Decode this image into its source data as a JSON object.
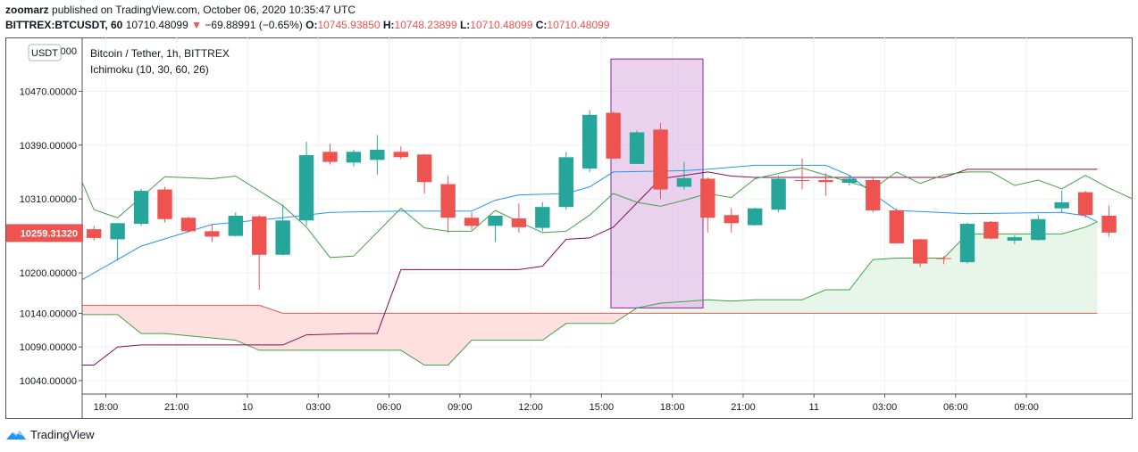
{
  "header": {
    "author": "zoomarz",
    "published_text": "published on TradingView.com, October 06, 2020 10:35:47 UTC",
    "symbol": "BITTREX:BTCUSDT, 60",
    "last": "10710.48099",
    "change": "−69.88991 (−0.65%)",
    "o_label": "O:",
    "o_val": "10745.93850",
    "h_label": "H:",
    "h_val": "10748.23899",
    "l_label": "L:",
    "l_val": "10710.48099",
    "c_label": "C:",
    "c_val": "10710.48099"
  },
  "chart_data": {
    "type": "candlestick",
    "title": "Bitcoin / Tether, 1h, BITTREX",
    "indicator": "Ichimoku (10, 30, 60, 26)",
    "currency_badge": "USDT",
    "price_tag": "10259.31320",
    "ylim": [
      10020,
      10550
    ],
    "y_ticks": [
      10470,
      10390,
      10310,
      10200,
      10140,
      10090,
      10040
    ],
    "y_tick_labels": [
      "10470.00000",
      "10390.00000",
      "10310.00000",
      "10200.00000",
      "10140.00000",
      "10090.00000",
      "10040.00000"
    ],
    "top_tick_partial": "1055.0000",
    "x_ticks": [
      {
        "i": 0.5,
        "label": "18:00"
      },
      {
        "i": 3.5,
        "label": "21:00"
      },
      {
        "i": 6.5,
        "label": "10"
      },
      {
        "i": 9.5,
        "label": "03:00"
      },
      {
        "i": 12.5,
        "label": "06:00"
      },
      {
        "i": 15.5,
        "label": "09:00"
      },
      {
        "i": 18.5,
        "label": "12:00"
      },
      {
        "i": 21.5,
        "label": "15:00"
      },
      {
        "i": 24.5,
        "label": "18:00"
      },
      {
        "i": 27.5,
        "label": "21:00"
      },
      {
        "i": 30.5,
        "label": "11"
      },
      {
        "i": 33.5,
        "label": "03:00"
      },
      {
        "i": 36.5,
        "label": "06:00"
      },
      {
        "i": 39.5,
        "label": "09:00"
      }
    ],
    "candles": [
      {
        "o": 10265,
        "h": 10270,
        "l": 10248,
        "c": 10252
      },
      {
        "o": 10250,
        "h": 10275,
        "l": 10218,
        "c": 10274
      },
      {
        "o": 10273,
        "h": 10325,
        "l": 10270,
        "c": 10322
      },
      {
        "o": 10324,
        "h": 10328,
        "l": 10275,
        "c": 10280
      },
      {
        "o": 10282,
        "h": 10284,
        "l": 10260,
        "c": 10262
      },
      {
        "o": 10262,
        "h": 10272,
        "l": 10246,
        "c": 10254
      },
      {
        "o": 10255,
        "h": 10290,
        "l": 10254,
        "c": 10285
      },
      {
        "o": 10284,
        "h": 10286,
        "l": 10175,
        "c": 10227
      },
      {
        "o": 10227,
        "h": 10302,
        "l": 10226,
        "c": 10278
      },
      {
        "o": 10278,
        "h": 10395,
        "l": 10270,
        "c": 10375
      },
      {
        "o": 10380,
        "h": 10392,
        "l": 10361,
        "c": 10365
      },
      {
        "o": 10364,
        "h": 10383,
        "l": 10358,
        "c": 10380
      },
      {
        "o": 10368,
        "h": 10405,
        "l": 10346,
        "c": 10383
      },
      {
        "o": 10380,
        "h": 10388,
        "l": 10369,
        "c": 10372
      },
      {
        "o": 10376,
        "h": 10377,
        "l": 10318,
        "c": 10335
      },
      {
        "o": 10332,
        "h": 10344,
        "l": 10260,
        "c": 10282
      },
      {
        "o": 10282,
        "h": 10290,
        "l": 10264,
        "c": 10270
      },
      {
        "o": 10270,
        "h": 10285,
        "l": 10246,
        "c": 10285
      },
      {
        "o": 10281,
        "h": 10303,
        "l": 10260,
        "c": 10268
      },
      {
        "o": 10267,
        "h": 10305,
        "l": 10262,
        "c": 10298
      },
      {
        "o": 10298,
        "h": 10380,
        "l": 10294,
        "c": 10372
      },
      {
        "o": 10355,
        "h": 10442,
        "l": 10350,
        "c": 10435
      },
      {
        "o": 10438,
        "h": 10440,
        "l": 10370,
        "c": 10370
      },
      {
        "o": 10362,
        "h": 10412,
        "l": 10362,
        "c": 10409
      },
      {
        "o": 10413,
        "h": 10423,
        "l": 10310,
        "c": 10324
      },
      {
        "o": 10328,
        "h": 10365,
        "l": 10324,
        "c": 10341
      },
      {
        "o": 10340,
        "h": 10342,
        "l": 10260,
        "c": 10282
      },
      {
        "o": 10286,
        "h": 10296,
        "l": 10260,
        "c": 10274
      },
      {
        "o": 10271,
        "h": 10297,
        "l": 10270,
        "c": 10296
      },
      {
        "o": 10294,
        "h": 10345,
        "l": 10290,
        "c": 10340
      },
      {
        "o": 10338,
        "h": 10370,
        "l": 10324,
        "c": 10337
      },
      {
        "o": 10338,
        "h": 10348,
        "l": 10315,
        "c": 10335
      },
      {
        "o": 10334,
        "h": 10344,
        "l": 10330,
        "c": 10340
      },
      {
        "o": 10338,
        "h": 10342,
        "l": 10290,
        "c": 10293
      },
      {
        "o": 10293,
        "h": 10296,
        "l": 10244,
        "c": 10244
      },
      {
        "o": 10250,
        "h": 10251,
        "l": 10209,
        "c": 10214
      },
      {
        "o": 10222,
        "h": 10225,
        "l": 10213,
        "c": 10221
      },
      {
        "o": 10216,
        "h": 10275,
        "l": 10214,
        "c": 10273
      },
      {
        "o": 10276,
        "h": 10277,
        "l": 10250,
        "c": 10251
      },
      {
        "o": 10248,
        "h": 10256,
        "l": 10243,
        "c": 10253
      },
      {
        "o": 10249,
        "h": 10286,
        "l": 10248,
        "c": 10280
      },
      {
        "o": 10296,
        "h": 10322,
        "l": 10290,
        "c": 10305
      },
      {
        "o": 10320,
        "h": 10322,
        "l": 10282,
        "c": 10286
      },
      {
        "o": 10285,
        "h": 10300,
        "l": 10254,
        "c": 10260
      }
    ],
    "lines": {
      "conversion": {
        "color": "#2196f3",
        "points": [
          [
            -0.5,
            10190
          ],
          [
            2,
            10240
          ],
          [
            5,
            10272
          ],
          [
            8,
            10282
          ],
          [
            10,
            10290
          ],
          [
            13,
            10292
          ],
          [
            16,
            10292
          ],
          [
            17,
            10308
          ],
          [
            18,
            10316
          ],
          [
            20,
            10318
          ],
          [
            21,
            10328
          ],
          [
            22,
            10350
          ],
          [
            25,
            10352
          ],
          [
            26,
            10354
          ],
          [
            28,
            10360
          ],
          [
            31,
            10360
          ],
          [
            32,
            10345
          ],
          [
            33,
            10318
          ],
          [
            34,
            10293
          ],
          [
            37,
            10288
          ],
          [
            41,
            10290
          ],
          [
            42,
            10285
          ],
          [
            42.5,
            10276
          ]
        ]
      },
      "base": {
        "color": "#880e4f",
        "points": [
          [
            -0.5,
            10063
          ],
          [
            0,
            10063
          ],
          [
            1,
            10090
          ],
          [
            2,
            10093
          ],
          [
            8,
            10093
          ],
          [
            9,
            10108
          ],
          [
            11,
            10110
          ],
          [
            12,
            10110
          ],
          [
            13,
            10205
          ],
          [
            18,
            10205
          ],
          [
            19,
            10210
          ],
          [
            20,
            10250
          ],
          [
            21,
            10252
          ],
          [
            22,
            10268
          ],
          [
            24,
            10340
          ],
          [
            25,
            10345
          ],
          [
            26,
            10350
          ],
          [
            27,
            10344
          ],
          [
            28,
            10342
          ],
          [
            31,
            10342
          ],
          [
            34,
            10342
          ],
          [
            35,
            10342
          ],
          [
            36,
            10342
          ],
          [
            37,
            10354
          ],
          [
            42.5,
            10354
          ]
        ]
      },
      "lagging": {
        "color": "#43a047",
        "points": [
          [
            -0.5,
            10335
          ],
          [
            0,
            10294
          ],
          [
            1,
            10282
          ],
          [
            3,
            10343
          ],
          [
            5,
            10340
          ],
          [
            6,
            10344
          ],
          [
            8,
            10300
          ],
          [
            9,
            10268
          ],
          [
            10,
            10223
          ],
          [
            11,
            10225
          ],
          [
            13,
            10296
          ],
          [
            14,
            10267
          ],
          [
            15,
            10262
          ],
          [
            16,
            10262
          ],
          [
            17,
            10293
          ],
          [
            18,
            10276
          ],
          [
            19,
            10260
          ],
          [
            20,
            10262
          ],
          [
            21,
            10286
          ],
          [
            22,
            10318
          ],
          [
            23,
            10305
          ],
          [
            24,
            10299
          ],
          [
            25,
            10308
          ],
          [
            26,
            10318
          ],
          [
            27,
            10312
          ],
          [
            28,
            10340
          ],
          [
            30,
            10356
          ],
          [
            32,
            10335
          ],
          [
            33,
            10325
          ],
          [
            34,
            10350
          ],
          [
            35,
            10333
          ],
          [
            36,
            10346
          ],
          [
            37,
            10350
          ],
          [
            38,
            10350
          ],
          [
            39,
            10330
          ],
          [
            40,
            10338
          ],
          [
            41,
            10325
          ],
          [
            42,
            10345
          ],
          [
            43,
            10326
          ],
          [
            44,
            10310
          ]
        ]
      },
      "span_a": {
        "color": "#43a047",
        "points": [
          [
            -0.5,
            10138
          ],
          [
            1,
            10138
          ],
          [
            2,
            10110
          ],
          [
            3,
            10110
          ],
          [
            6,
            10100
          ],
          [
            7,
            10085
          ],
          [
            12,
            10085
          ],
          [
            13,
            10085
          ],
          [
            14,
            10063
          ],
          [
            15,
            10063
          ],
          [
            16,
            10100
          ],
          [
            19,
            10100
          ],
          [
            20,
            10125
          ],
          [
            22,
            10125
          ],
          [
            23,
            10148
          ],
          [
            24,
            10155
          ],
          [
            26,
            10160
          ],
          [
            27,
            10158
          ],
          [
            28,
            10160
          ],
          [
            30,
            10160
          ],
          [
            31,
            10175
          ],
          [
            32,
            10175
          ],
          [
            33,
            10220
          ],
          [
            34,
            10222
          ],
          [
            35,
            10222
          ],
          [
            36,
            10222
          ],
          [
            37,
            10258
          ],
          [
            41,
            10258
          ],
          [
            42,
            10268
          ],
          [
            42.5,
            10276
          ]
        ]
      },
      "span_b": {
        "color": "#ef5350",
        "points": [
          [
            -0.5,
            10152
          ],
          [
            7,
            10152
          ],
          [
            8,
            10140
          ],
          [
            42.5,
            10140
          ]
        ]
      }
    },
    "highlight": {
      "from_i": 21.9,
      "to_i": 25.8,
      "top": 10518,
      "bottom": 10148
    },
    "colors": {
      "up": "#26a69a",
      "down": "#ef5350",
      "cloud_red": "#ffe0e0",
      "cloud_green": "#e8f5e9",
      "highlight_fill": "#e1bee7",
      "highlight_stroke": "#8e24aa"
    }
  },
  "footer": {
    "brand": "TradingView"
  }
}
